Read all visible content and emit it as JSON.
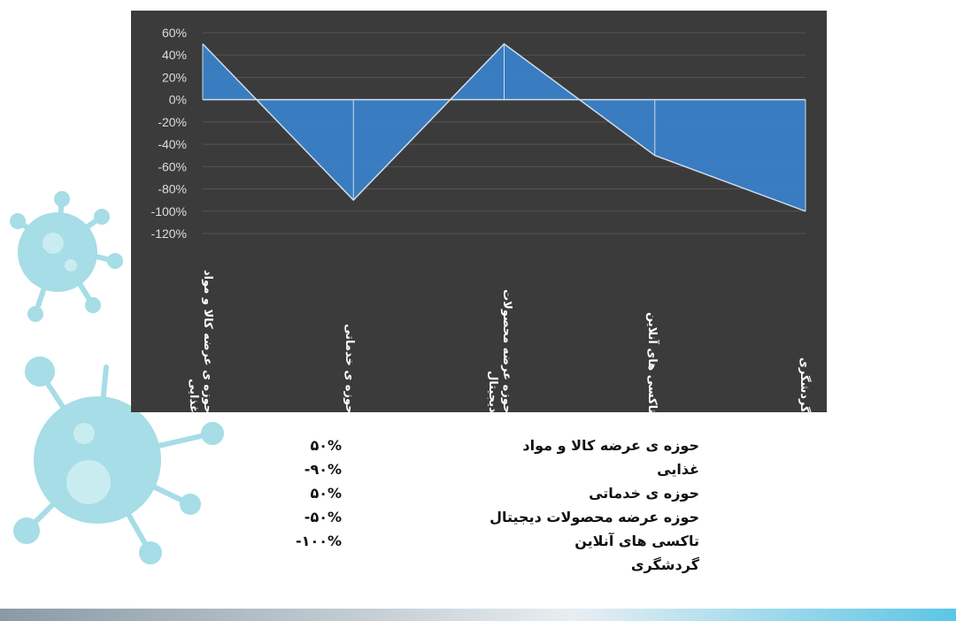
{
  "chart_data": {
    "type": "area",
    "categories": [
      "حوزه ی عرضه کالا و مواد غذایی",
      "حوزه ی خدماتی",
      "حوزه عرضه محصولات دیجیتال",
      "تاکسی های آنلاین",
      "گردشگری"
    ],
    "values": [
      50,
      -90,
      50,
      -50,
      -100
    ],
    "ylim": [
      -120,
      60
    ],
    "yticks": [
      "60%",
      "40%",
      "20%",
      "0%",
      "-20%",
      "-40%",
      "-60%",
      "-80%",
      "-100%",
      "-120%"
    ],
    "ytick_values": [
      60,
      40,
      20,
      0,
      -20,
      -40,
      -60,
      -80,
      -100,
      -120
    ],
    "grid": true,
    "colors": {
      "fill": "#3a82cc",
      "background": "#3b3b3b",
      "line": "#d0dcea"
    }
  },
  "table": {
    "labels": [
      "حوزه ی عرضه کالا و مواد غذایی",
      "حوزه ی خدماتی",
      "حوزه عرضه محصولات دیجیتال",
      "تاکسی های آنلاین",
      "گردشگری"
    ],
    "values": [
      "۵۰%",
      "-۹۰%",
      "۵۰%",
      "-۵۰%",
      "-۱۰۰%"
    ]
  }
}
